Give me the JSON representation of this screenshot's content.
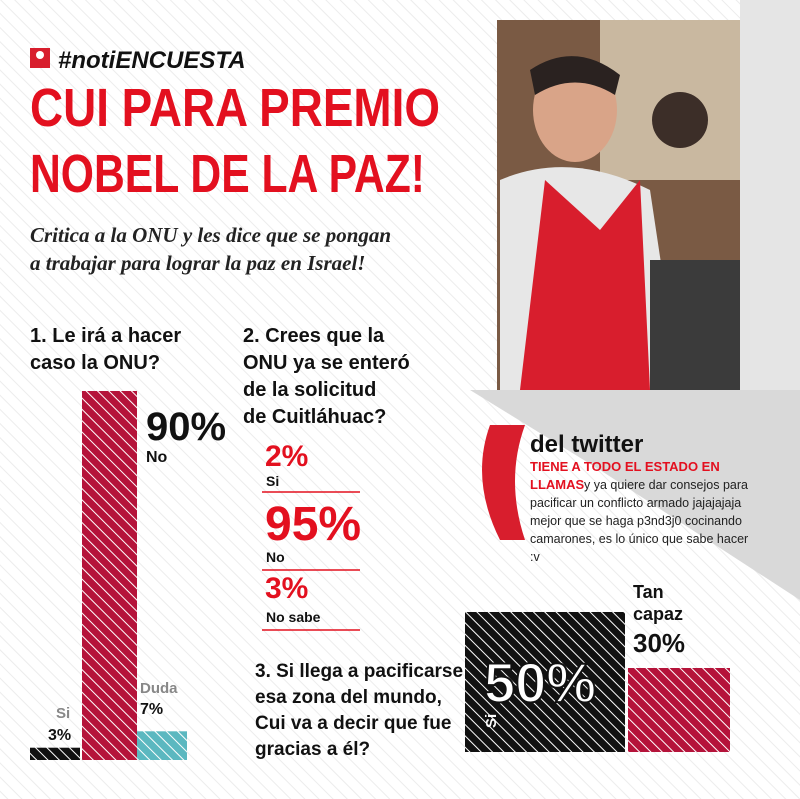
{
  "header": {
    "hashtag": "#notiENCUESTA",
    "title_lines": [
      "CUI PARA PREMIO",
      "NOBEL DE LA PAZ!"
    ],
    "subtitle_lines": [
      "Critica a la ONU y les dice que se pongan",
      "a trabajar para lograr la paz en Israel!"
    ]
  },
  "question1": {
    "text_lines": [
      "1. Le irá a hacer",
      "caso la ONU?"
    ],
    "categories": [
      "Si",
      "No",
      "Duda"
    ],
    "values": [
      3,
      90,
      7
    ],
    "value_labels": [
      "3%",
      "90%",
      "7%"
    ]
  },
  "question2": {
    "text_lines": [
      "2. Crees que la",
      "ONU ya se enteró",
      "de la solicitud",
      "de Cuitláhuac?"
    ],
    "categories": [
      "Si",
      "No",
      "No sabe"
    ],
    "values": [
      2,
      95,
      3
    ],
    "value_labels": [
      "2%",
      "95%",
      "3%"
    ]
  },
  "twitter": {
    "title": "del twitter",
    "handle_lines": [
      "TIENE A TODO EL ESTADO EN",
      "LLAMAS"
    ],
    "text_lines": [
      "y ya quiere dar consejos para",
      "pacificar un conflicto armado jajajajaja",
      "mejor que se haga p3nd3j0 cocinando",
      "camarones, es lo único que sabe hacer",
      ":v"
    ]
  },
  "question3": {
    "text_lines": [
      "3. Si llega a pacificarse",
      "esa zona del mundo,",
      "Cui va a decir que fue",
      "gracias a él?"
    ],
    "categories": [
      "Si",
      "Tan capaz"
    ],
    "values": [
      50,
      30
    ],
    "value_labels": [
      "50%",
      "30%"
    ]
  }
}
